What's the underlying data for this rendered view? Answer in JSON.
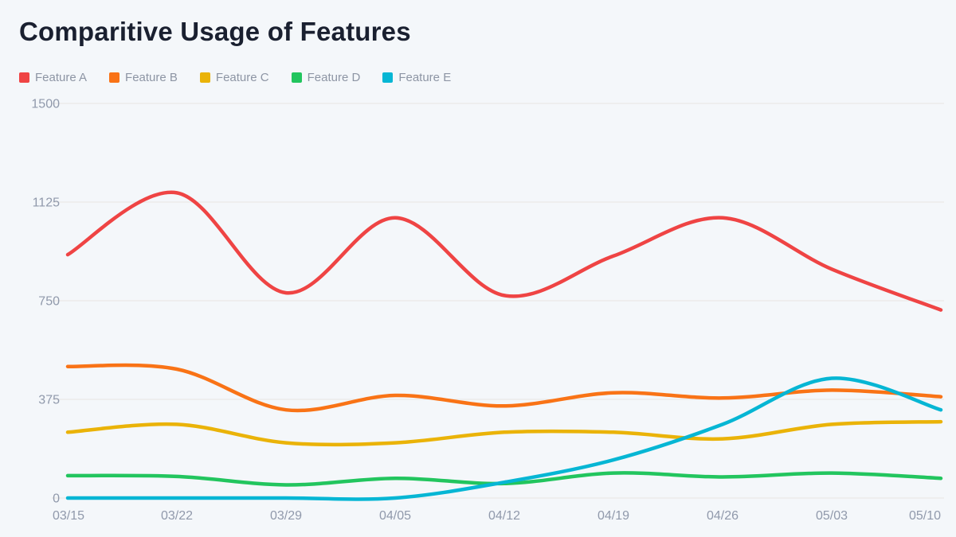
{
  "page": {
    "background": "#f4f7fa"
  },
  "header": {
    "title": "Comparitive Usage of Features"
  },
  "chart_data": {
    "type": "line",
    "title": "Comparitive Usage of Features",
    "xlabel": "",
    "ylabel": "",
    "categories": [
      "03/15",
      "03/22",
      "03/29",
      "04/05",
      "04/12",
      "04/19",
      "04/26",
      "05/03",
      "05/10"
    ],
    "series": [
      {
        "name": "Feature A",
        "color": "#ef4444",
        "values": [
          925,
          1160,
          780,
          1065,
          770,
          920,
          1065,
          870,
          715
        ]
      },
      {
        "name": "Feature B",
        "color": "#f97316",
        "values": [
          500,
          490,
          335,
          390,
          350,
          400,
          380,
          410,
          385
        ]
      },
      {
        "name": "Feature C",
        "color": "#eab308",
        "values": [
          250,
          280,
          210,
          210,
          250,
          250,
          225,
          280,
          290
        ]
      },
      {
        "name": "Feature D",
        "color": "#22c55e",
        "values": [
          85,
          82,
          50,
          75,
          55,
          95,
          80,
          95,
          75
        ]
      },
      {
        "name": "Feature E",
        "color": "#06b6d4",
        "values": [
          0,
          0,
          0,
          0,
          60,
          145,
          280,
          455,
          335
        ]
      }
    ],
    "ylim": [
      0,
      1500
    ],
    "yticks": [
      0,
      375,
      750,
      1125,
      1500
    ],
    "grid": "horizontal-only",
    "legend_position": "top-left",
    "line_style": "smooth"
  },
  "style": {
    "grid_color": "#e8e5e2",
    "tick_color": "#9099ab",
    "legend_text_color": "#8d95a4",
    "title_color": "#1a2030",
    "background": "#f4f7fa"
  }
}
